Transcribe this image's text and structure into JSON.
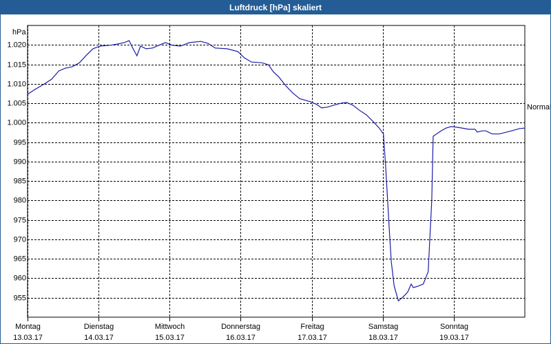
{
  "chart_data": {
    "type": "line",
    "title": "Luftdruck [hPa] skaliert",
    "y_label": "hPa",
    "annotation": "Normal",
    "grid": true,
    "color": "#1a1aa8",
    "xlim": [
      0,
      7
    ],
    "xticks": [
      {
        "value": 0,
        "label": "Montag",
        "date": "13.03.17"
      },
      {
        "value": 1,
        "label": "Dienstag",
        "date": "14.03.17"
      },
      {
        "value": 2,
        "label": "Mittwoch",
        "date": "15.03.17"
      },
      {
        "value": 3,
        "label": "Donnerstag",
        "date": "16.03.17"
      },
      {
        "value": 4,
        "label": "Freitag",
        "date": "17.03.17"
      },
      {
        "value": 5,
        "label": "Samstag",
        "date": "18.03.17"
      },
      {
        "value": 6,
        "label": "Sonntag",
        "date": "19.03.17"
      }
    ],
    "ylim": [
      950,
      1025
    ],
    "yticks": [
      955,
      960,
      965,
      970,
      975,
      980,
      985,
      990,
      995,
      {
        "value": 1000,
        "label": "1.000"
      },
      {
        "value": 1005,
        "label": "1.005"
      },
      {
        "value": 1010,
        "label": "1.010"
      },
      {
        "value": 1015,
        "label": "1.015"
      },
      {
        "value": 1020,
        "label": "1.020"
      }
    ],
    "x": [
      0,
      0.1,
      0.24,
      0.34,
      0.44,
      0.53,
      0.63,
      0.73,
      0.82,
      0.92,
      1.02,
      1.16,
      1.26,
      1.36,
      1.43,
      1.48,
      1.54,
      1.59,
      1.67,
      1.76,
      1.86,
      1.94,
      2.04,
      2.15,
      2.28,
      2.44,
      2.54,
      2.64,
      2.81,
      2.96,
      3.05,
      3.15,
      3.3,
      3.39,
      3.46,
      3.54,
      3.64,
      3.73,
      3.83,
      3.98,
      4.07,
      4.14,
      4.22,
      4.31,
      4.41,
      4.49,
      4.58,
      4.67,
      4.77,
      4.87,
      4.95,
      5.01,
      5.04,
      5.09,
      5.12,
      5.16,
      5.22,
      5.28,
      5.35,
      5.4,
      5.43,
      5.5,
      5.57,
      5.64,
      5.69,
      5.71,
      5.82,
      5.89,
      5.96,
      6.06,
      6.21,
      6.3,
      6.33,
      6.4,
      6.45,
      6.54,
      6.64,
      6.79,
      6.93,
      7.0
    ],
    "values": [
      1007.3,
      1008.5,
      1010,
      1011.2,
      1013.3,
      1014,
      1014.4,
      1015.4,
      1017.2,
      1019,
      1019.7,
      1019.9,
      1020.2,
      1020.6,
      1021.1,
      1019.2,
      1017.2,
      1019.7,
      1019,
      1019.2,
      1020,
      1020.6,
      1019.9,
      1019.7,
      1020.6,
      1020.9,
      1020.4,
      1019.2,
      1019,
      1018.3,
      1016.7,
      1015.6,
      1015.4,
      1014.9,
      1013.1,
      1011.7,
      1009.4,
      1007.7,
      1006.2,
      1005.4,
      1004.7,
      1003.8,
      1004,
      1004.5,
      1005,
      1005.2,
      1004.5,
      1003.2,
      1002,
      1000.2,
      998.6,
      997.1,
      989.1,
      973.2,
      964.3,
      958.1,
      954.2,
      955.1,
      956.4,
      958.5,
      957.6,
      958,
      958.5,
      961.7,
      980.2,
      996.5,
      997.9,
      998.6,
      999,
      998.8,
      998.3,
      998.3,
      997.6,
      997.9,
      997.9,
      997.1,
      997.1,
      997.8,
      998.5,
      998.6
    ]
  }
}
